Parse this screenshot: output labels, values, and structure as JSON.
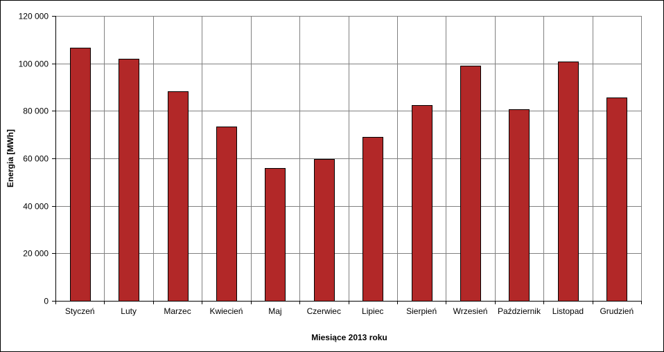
{
  "chart_data": {
    "type": "bar",
    "title": "",
    "xlabel": "Miesiące 2013  roku",
    "ylabel": "Energia  [MWh]",
    "categories": [
      "Styczeń",
      "Luty",
      "Marzec",
      "Kwiecień",
      "Maj",
      "Czerwiec",
      "Lipiec",
      "Sierpień",
      "Wrzesień",
      "Październik",
      "Listopad",
      "Grudzień"
    ],
    "values": [
      106500,
      101800,
      88300,
      73500,
      56000,
      59800,
      69000,
      82500,
      99000,
      80800,
      100700,
      85700
    ],
    "ylim": [
      0,
      120000
    ],
    "yticks": [
      0,
      20000,
      40000,
      60000,
      80000,
      100000,
      120000
    ],
    "ytick_labels": [
      "0",
      "20 000",
      "40 000",
      "60 000",
      "80 000",
      "100 000",
      "120 000"
    ],
    "grid": true,
    "legend": "none",
    "colors": {
      "bar": "#B22828",
      "bar_edge": "#000000",
      "grid": "#808080"
    }
  }
}
